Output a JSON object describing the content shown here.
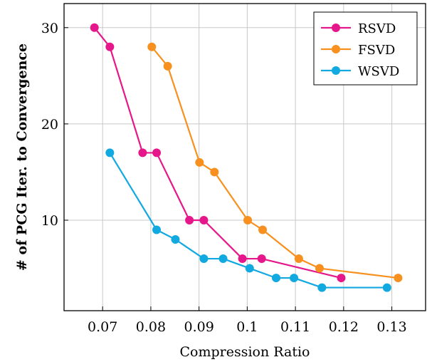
{
  "chart_data": {
    "type": "line",
    "title": "",
    "xlabel": "Compression Ratio",
    "ylabel": "# of PCG Iter. to Convergence",
    "xlim": [
      0.062,
      0.137
    ],
    "ylim": [
      0.6,
      32.5
    ],
    "xticks": [
      0.07,
      0.08,
      0.09,
      0.1,
      0.11,
      0.12,
      0.13
    ],
    "xtick_labels": [
      "0.07",
      "0.08",
      "0.09",
      "0.1",
      "0.11",
      "0.12",
      "0.13"
    ],
    "yticks": [
      10,
      20,
      30
    ],
    "ytick_labels": [
      "10",
      "20",
      "30"
    ],
    "grid": true,
    "legend_position": "top-right",
    "series": [
      {
        "name": "RSVD",
        "color": "#e6178a",
        "x": [
          0.0683,
          0.0715,
          0.0783,
          0.0812,
          0.088,
          0.091,
          0.099,
          0.103,
          0.1195
        ],
        "y": [
          30,
          28,
          17,
          17,
          10,
          10,
          6,
          6,
          4
        ]
      },
      {
        "name": "FSVD",
        "color": "#f7901e",
        "x": [
          0.0802,
          0.0835,
          0.0901,
          0.0932,
          0.1001,
          0.1032,
          0.1107,
          0.115,
          0.1313
        ],
        "y": [
          28,
          26,
          16,
          15,
          10,
          9,
          6,
          5,
          4
        ]
      },
      {
        "name": "WSVD",
        "color": "#12a9e1",
        "x": [
          0.0715,
          0.0812,
          0.0851,
          0.091,
          0.095,
          0.1005,
          0.106,
          0.1097,
          0.1155,
          0.129
        ],
        "y": [
          17,
          9,
          8,
          6,
          6,
          5,
          4,
          4,
          3,
          3
        ]
      }
    ]
  }
}
